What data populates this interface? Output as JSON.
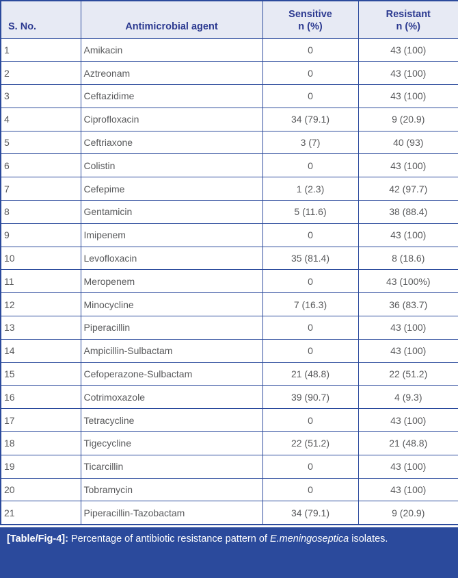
{
  "colors": {
    "header_bg": "#e7eaf4",
    "header_text": "#2b3990",
    "border": "#2b4a9c",
    "cell_text": "#58595b",
    "caption_bg": "#2b4a9c",
    "caption_text": "#ffffff"
  },
  "table": {
    "columns": [
      {
        "key": "sno",
        "label": "S. No.",
        "sub": ""
      },
      {
        "key": "agent",
        "label": "Antimicrobial agent",
        "sub": ""
      },
      {
        "key": "sensitive",
        "label": "Sensitive",
        "sub": "n (%)"
      },
      {
        "key": "resistant",
        "label": "Resistant",
        "sub": "n (%)"
      }
    ],
    "rows": [
      {
        "sno": "1",
        "agent": "Amikacin",
        "sensitive": "0",
        "resistant": "43 (100)"
      },
      {
        "sno": "2",
        "agent": "Aztreonam",
        "sensitive": "0",
        "resistant": "43 (100)"
      },
      {
        "sno": "3",
        "agent": "Ceftazidime",
        "sensitive": "0",
        "resistant": "43 (100)"
      },
      {
        "sno": "4",
        "agent": "Ciprofloxacin",
        "sensitive": "34 (79.1)",
        "resistant": "9 (20.9)"
      },
      {
        "sno": "5",
        "agent": "Ceftriaxone",
        "sensitive": "3 (7)",
        "resistant": "40 (93)"
      },
      {
        "sno": "6",
        "agent": "Colistin",
        "sensitive": "0",
        "resistant": "43 (100)"
      },
      {
        "sno": "7",
        "agent": "Cefepime",
        "sensitive": "1 (2.3)",
        "resistant": "42 (97.7)"
      },
      {
        "sno": "8",
        "agent": "Gentamicin",
        "sensitive": "5 (11.6)",
        "resistant": "38 (88.4)"
      },
      {
        "sno": "9",
        "agent": "Imipenem",
        "sensitive": "0",
        "resistant": "43 (100)"
      },
      {
        "sno": "10",
        "agent": "Levofloxacin",
        "sensitive": "35 (81.4)",
        "resistant": "8 (18.6)"
      },
      {
        "sno": "11",
        "agent": "Meropenem",
        "sensitive": "0",
        "resistant": "43 (100%)"
      },
      {
        "sno": "12",
        "agent": "Minocycline",
        "sensitive": "7 (16.3)",
        "resistant": "36 (83.7)"
      },
      {
        "sno": "13",
        "agent": "Piperacillin",
        "sensitive": "0",
        "resistant": "43 (100)"
      },
      {
        "sno": "14",
        "agent": "Ampicillin-Sulbactam",
        "sensitive": "0",
        "resistant": "43 (100)"
      },
      {
        "sno": "15",
        "agent": "Cefoperazone-Sulbactam",
        "sensitive": "21 (48.8)",
        "resistant": "22 (51.2)"
      },
      {
        "sno": "16",
        "agent": "Cotrimoxazole",
        "sensitive": "39 (90.7)",
        "resistant": "4 (9.3)"
      },
      {
        "sno": "17",
        "agent": "Tetracycline",
        "sensitive": "0",
        "resistant": "43 (100)"
      },
      {
        "sno": "18",
        "agent": "Tigecycline",
        "sensitive": "22 (51.2)",
        "resistant": "21 (48.8)"
      },
      {
        "sno": "19",
        "agent": "Ticarcillin",
        "sensitive": "0",
        "resistant": "43 (100)"
      },
      {
        "sno": "20",
        "agent": "Tobramycin",
        "sensitive": "0",
        "resistant": "43 (100)"
      },
      {
        "sno": "21",
        "agent": "Piperacillin-Tazobactam",
        "sensitive": "34 (79.1)",
        "resistant": "9 (20.9)"
      }
    ]
  },
  "caption": {
    "label": "[Table/Fig-4]:",
    "text": " Percentage of antibiotic resistance pattern of ",
    "species": "E.meningoseptica",
    "tail": " isolates."
  }
}
